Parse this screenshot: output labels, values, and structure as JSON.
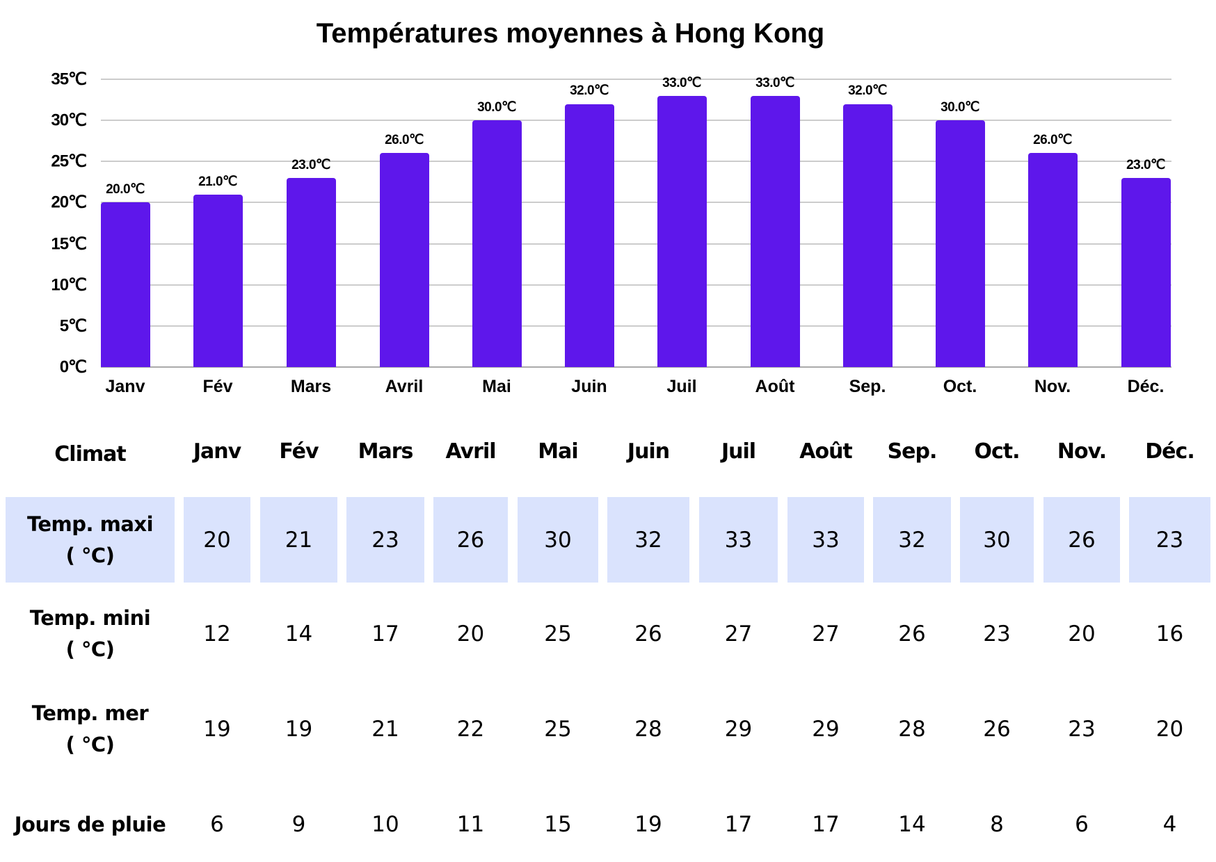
{
  "chart_data": {
    "type": "bar",
    "title": "Températures moyennes à Hong Kong",
    "xlabel": "",
    "ylabel": "",
    "categories": [
      "Janv",
      "Fév",
      "Mars",
      "Avril",
      "Mai",
      "Juin",
      "Juil",
      "Août",
      "Sep.",
      "Oct.",
      "Nov.",
      "Déc."
    ],
    "values": [
      20,
      21,
      23,
      26,
      30,
      32,
      33,
      33,
      32,
      30,
      26,
      23
    ],
    "data_labels": [
      "20.0℃",
      "21.0℃",
      "23.0℃",
      "26.0℃",
      "30.0℃",
      "32.0℃",
      "33.0℃",
      "33.0℃",
      "32.0℃",
      "30.0℃",
      "26.0℃",
      "23.0℃"
    ],
    "ylim": [
      0,
      35
    ],
    "yticks": [
      "35℃",
      "30℃",
      "25℃",
      "20℃",
      "15℃",
      "10℃",
      "5℃",
      "0℃"
    ],
    "grid": true,
    "legend": "none",
    "bar_color": "#5e17eb"
  },
  "table": {
    "corner": "Climat",
    "months": [
      "Janv",
      "Fév",
      "Mars",
      "Avril",
      "Mai",
      "Juin",
      "Juil",
      "Août",
      "Sep.",
      "Oct.",
      "Nov.",
      "Déc."
    ],
    "rows": [
      {
        "label_line1": "Temp. maxi",
        "label_line2": "( ℃)",
        "values": [
          "20",
          "21",
          "23",
          "26",
          "30",
          "32",
          "33",
          "33",
          "32",
          "30",
          "26",
          "23"
        ],
        "highlight": true
      },
      {
        "label_line1": "Temp. mini",
        "label_line2": "( ℃)",
        "values": [
          "12",
          "14",
          "17",
          "20",
          "25",
          "26",
          "27",
          "27",
          "26",
          "23",
          "20",
          "16"
        ],
        "highlight": false
      },
      {
        "label_line1": "Temp. mer",
        "label_line2": "( ℃)",
        "values": [
          "19",
          "19",
          "21",
          "22",
          "25",
          "28",
          "29",
          "29",
          "28",
          "26",
          "23",
          "20"
        ],
        "highlight": false
      },
      {
        "label_line1": "Jours de pluie",
        "label_line2": "",
        "values": [
          "6",
          "9",
          "10",
          "11",
          "15",
          "19",
          "17",
          "17",
          "14",
          "8",
          "6",
          "4"
        ],
        "highlight": false
      }
    ],
    "highlight_color": "#dae3fd"
  }
}
